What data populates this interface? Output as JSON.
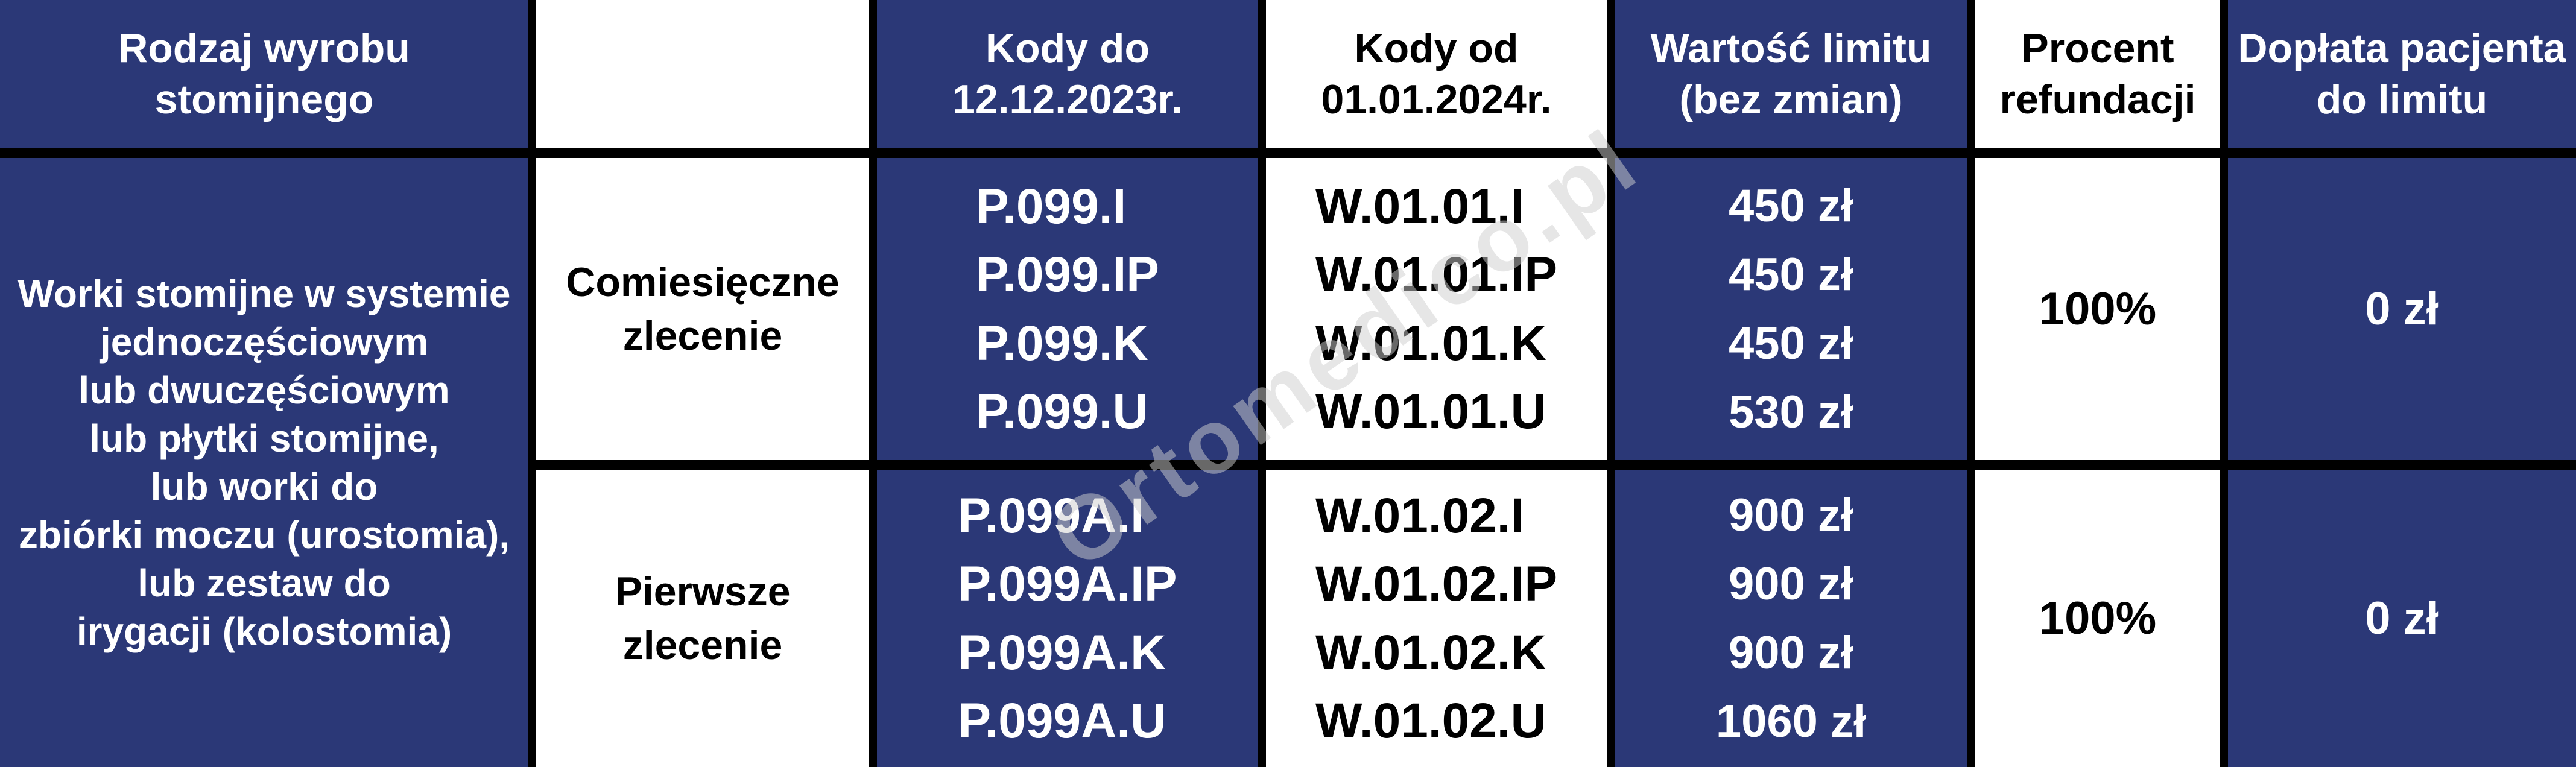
{
  "table": {
    "header": {
      "product_type": "Rodzaj wyrobu\nstomijnego",
      "blank": "",
      "codes_until": "Kody do\n12.12.2023r.",
      "codes_from": "Kody od\n01.01.2024r.",
      "limit_value": "Wartość limitu\n(bez zmian)",
      "refund_percent": "Procent\nrefundacji",
      "patient_copay": "Dopłata pacjenta\ndo limitu"
    },
    "product": "Worki stomijne w systemie\njednoczęściowym\nlub dwuczęściowym\nlub płytki stomijne,\nlub worki do\nzbiórki moczu (urostomia),\nlub zestaw do\nirygacji (kolostomia)",
    "rows": [
      {
        "order_type": "Comiesięczne\nzlecenie",
        "codes_until": "P.099.I\nP.099.IP\nP.099.K\nP.099.U",
        "codes_from": "W.01.01.I\nW.01.01.IP\nW.01.01.K\nW.01.01.U",
        "limit_values": "450 zł\n450 zł\n450 zł\n530 zł",
        "refund_percent": "100%",
        "patient_copay": "0 zł"
      },
      {
        "order_type": "Pierwsze\nzlecenie",
        "codes_until": "P.099A.I\nP.099A.IP\nP.099A.K\nP.099A.U",
        "codes_from": "W.01.02.I\nW.01.02.IP\nW.01.02.K\nW.01.02.U",
        "limit_values": "900 zł\n900 zł\n900 zł\n1060 zł",
        "refund_percent": "100%",
        "patient_copay": "0 zł"
      }
    ]
  },
  "watermark": "Ortomedico.pl",
  "colors": {
    "navy": "#2B3877",
    "grid": "#000000",
    "text_on_navy": "#FFFFFF",
    "text_on_white": "#000000",
    "watermark": "#CFCFCF"
  }
}
